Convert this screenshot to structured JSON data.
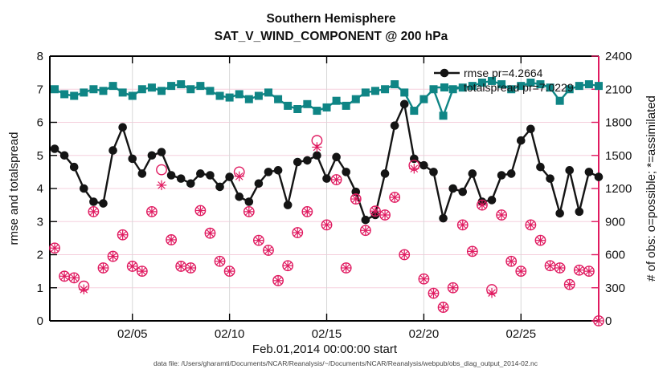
{
  "figure": {
    "title_line1": "Southern Hemisphere",
    "title_line2": "SAT_V_WIND_COMPONENT @ 200 hPa",
    "caption": "data file: /Users/gharamti/Documents/NCAR/Reanalysis/~/Documents/NCAR/Reanalysis/webpub/obs_diag_output_2014-02.nc"
  },
  "chart_data": {
    "type": "line",
    "title": "Southern Hemisphere — SAT_V_WIND_COMPONENT @ 200 hPa",
    "x_label": "Feb.01,2014 00:00:00 start",
    "y_left_label": "rmse and totalspread",
    "y_right_label": "# of obs: o=possible; *=assimilated",
    "x_lim_days": [
      0.75,
      29
    ],
    "y_left_lim": [
      0,
      8
    ],
    "y_right_lim": [
      0,
      2400
    ],
    "grid": "on",
    "legend_position": "top-right-inside",
    "colors": {
      "rmse": "#141414",
      "totalspread": "#0f8585",
      "obs": "#e01a60",
      "grid_h": "#f5d0dd",
      "grid_v": "#d8d8d8",
      "axis": "#000000"
    },
    "legend": [
      {
        "label": "rmse pr=4.2664",
        "marker": "filled-circle",
        "color": "#141414"
      },
      {
        "label": "totalspread pr=7.0229",
        "marker": "filled-square",
        "color": "#0f8585"
      }
    ],
    "x_ticks": [
      {
        "day": 5,
        "label": "02/05"
      },
      {
        "day": 10,
        "label": "02/10"
      },
      {
        "day": 15,
        "label": "02/15"
      },
      {
        "day": 20,
        "label": "02/20"
      },
      {
        "day": 25,
        "label": "02/25"
      }
    ],
    "y_left_ticks": [
      0,
      1,
      2,
      3,
      4,
      5,
      6,
      7,
      8
    ],
    "y_right_ticks": [
      0,
      300,
      600,
      900,
      1200,
      1500,
      1800,
      2100,
      2400
    ],
    "x_days": [
      1,
      1.5,
      2,
      2.5,
      3,
      3.5,
      4,
      4.5,
      5,
      5.5,
      6,
      6.5,
      7,
      7.5,
      8,
      8.5,
      9,
      9.5,
      10,
      10.5,
      11,
      11.5,
      12,
      12.5,
      13,
      13.5,
      14,
      14.5,
      15,
      15.5,
      16,
      16.5,
      17,
      17.5,
      18,
      18.5,
      19,
      19.5,
      20,
      20.5,
      21,
      21.5,
      22,
      22.5,
      23,
      23.5,
      24,
      24.5,
      25,
      25.5,
      26,
      26.5,
      27,
      27.5,
      28,
      28.5,
      29
    ],
    "series": [
      {
        "name": "rmse",
        "axis": "left",
        "marker": "filled-circle",
        "color": "#141414",
        "values": [
          5.2,
          5.0,
          4.65,
          4.0,
          3.6,
          3.55,
          5.15,
          5.85,
          4.9,
          4.45,
          5.0,
          5.1,
          4.4,
          4.3,
          4.15,
          4.45,
          4.4,
          4.05,
          4.35,
          3.75,
          3.6,
          4.15,
          4.5,
          4.55,
          3.5,
          4.8,
          4.85,
          5.0,
          4.3,
          4.95,
          4.5,
          3.9,
          3.05,
          3.2,
          4.45,
          5.9,
          6.55,
          4.9,
          4.7,
          4.5,
          3.1,
          4.0,
          3.9,
          4.45,
          3.6,
          3.65,
          4.4,
          4.45,
          5.45,
          5.8,
          4.65,
          4.3,
          3.25,
          4.55,
          3.3,
          4.5,
          4.35
        ]
      },
      {
        "name": "totalspread",
        "axis": "left",
        "marker": "filled-square",
        "color": "#0f8585",
        "values": [
          7.0,
          6.85,
          6.8,
          6.9,
          7.0,
          6.95,
          7.1,
          6.9,
          6.8,
          7.0,
          7.05,
          6.95,
          7.1,
          7.15,
          7.0,
          7.1,
          6.95,
          6.8,
          6.75,
          6.85,
          6.7,
          6.8,
          6.9,
          6.7,
          6.5,
          6.4,
          6.55,
          6.35,
          6.45,
          6.65,
          6.5,
          6.7,
          6.9,
          6.95,
          7.0,
          7.15,
          6.9,
          6.35,
          6.7,
          7.0,
          6.2,
          7.0,
          7.05,
          7.1,
          7.2,
          7.25,
          7.15,
          7.0,
          7.1,
          7.2,
          7.15,
          7.05,
          6.65,
          7.0,
          7.1,
          7.15,
          7.1
        ]
      },
      {
        "name": "obs_possible",
        "axis": "right",
        "marker": "open-circle",
        "color": "#e01a60",
        "values": [
          660,
          405,
          390,
          315,
          990,
          480,
          585,
          780,
          495,
          450,
          990,
          1370,
          735,
          495,
          480,
          1000,
          795,
          540,
          450,
          1350,
          990,
          730,
          640,
          365,
          500,
          800,
          990,
          1635,
          870,
          1280,
          480,
          1105,
          820,
          995,
          960,
          1120,
          600,
          1410,
          380,
          250,
          123,
          300,
          870,
          630,
          1050,
          283,
          960,
          540,
          450,
          870,
          730,
          500,
          480,
          330,
          460,
          450,
          0
        ]
      },
      {
        "name": "obs_assimilated",
        "axis": "right",
        "marker": "asterisk",
        "color": "#e01a60",
        "values": [
          660,
          405,
          390,
          285,
          990,
          480,
          585,
          780,
          495,
          450,
          990,
          1230,
          735,
          495,
          480,
          1000,
          795,
          540,
          450,
          1310,
          990,
          730,
          640,
          365,
          500,
          800,
          990,
          1575,
          870,
          1280,
          480,
          1105,
          820,
          995,
          960,
          1120,
          600,
          1380,
          380,
          250,
          123,
          300,
          870,
          630,
          1050,
          253,
          960,
          540,
          450,
          870,
          730,
          500,
          480,
          330,
          460,
          450,
          0
        ]
      }
    ]
  }
}
